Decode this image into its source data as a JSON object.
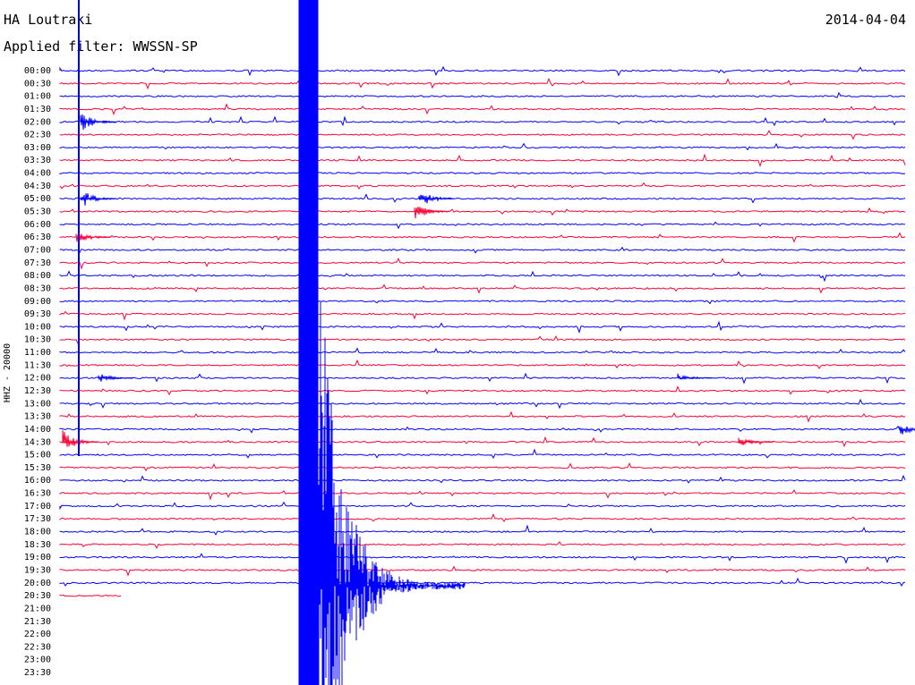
{
  "header": {
    "station": "HA Loutraki",
    "filter": "Applied filter: WWSSN-SP",
    "date": "2014-04-04",
    "axis_label": "HHZ - 20000"
  },
  "rows": [
    "00:00",
    "00:30",
    "01:00",
    "01:30",
    "02:00",
    "02:30",
    "03:00",
    "03:30",
    "04:00",
    "04:30",
    "05:00",
    "05:30",
    "06:00",
    "06:30",
    "07:00",
    "07:30",
    "08:00",
    "08:30",
    "09:00",
    "09:30",
    "10:00",
    "10:30",
    "11:00",
    "11:30",
    "12:00",
    "12:30",
    "13:00",
    "13:30",
    "14:00",
    "14:30",
    "15:00",
    "15:30",
    "16:00",
    "16:30",
    "17:00",
    "17:30",
    "18:00",
    "18:30",
    "19:00",
    "19:30",
    "20:00",
    "20:30",
    "21:00",
    "21:30",
    "22:00",
    "22:30",
    "23:00",
    "23:30"
  ]
}
